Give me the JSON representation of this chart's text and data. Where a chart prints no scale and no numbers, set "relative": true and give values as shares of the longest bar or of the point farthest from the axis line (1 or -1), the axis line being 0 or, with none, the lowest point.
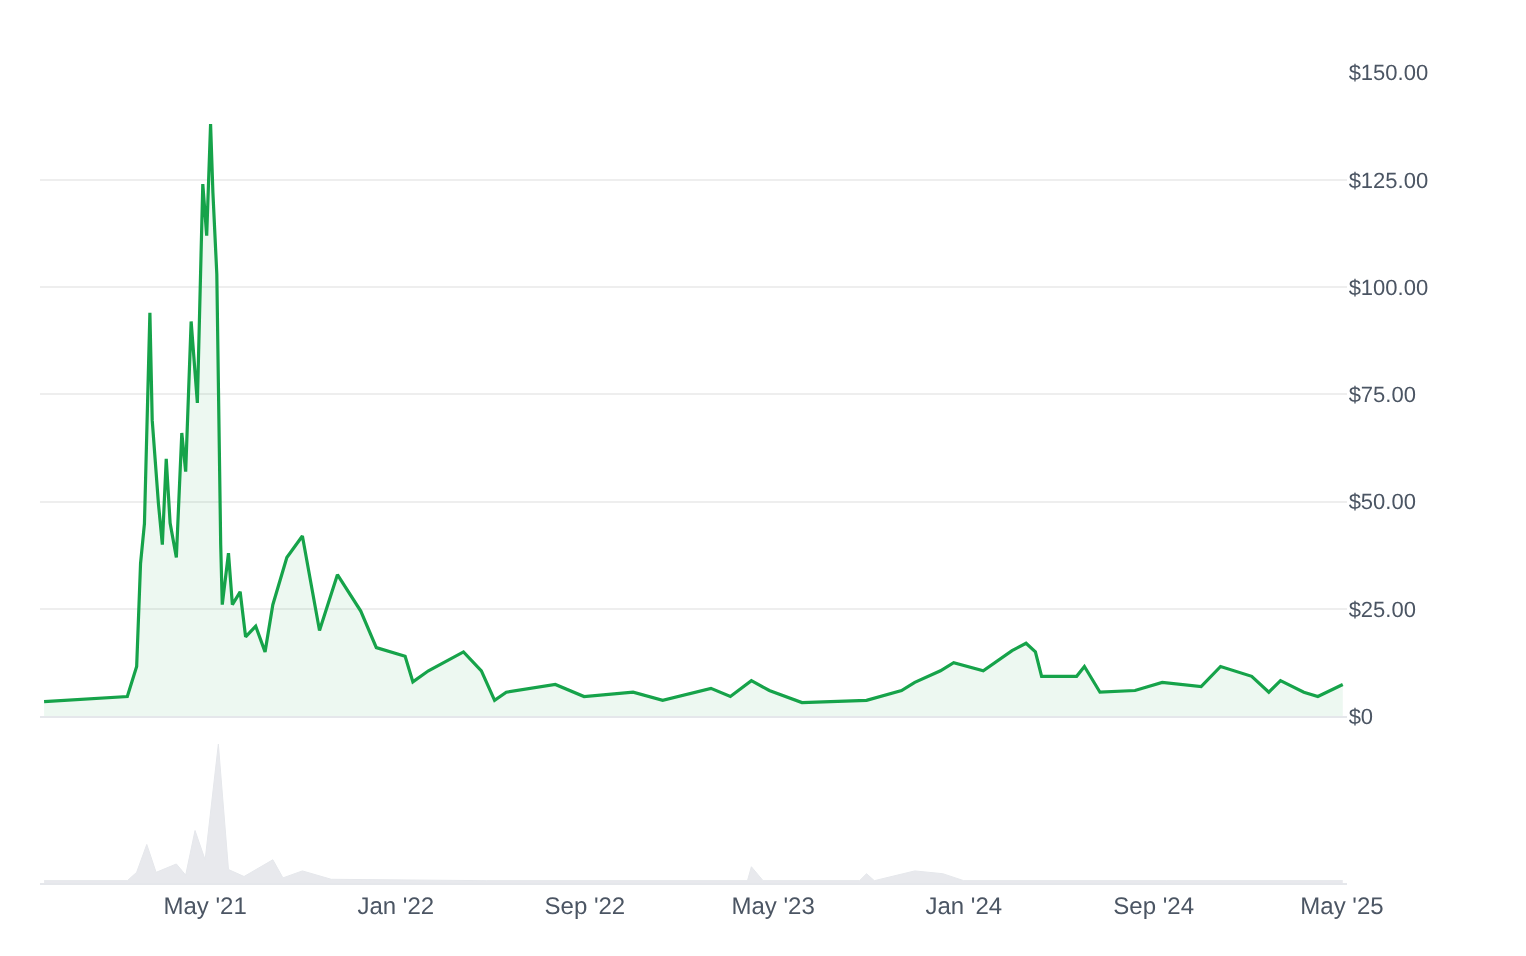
{
  "chart_data": [
    {
      "type": "area",
      "tick_labels": "y",
      "grid": "y",
      "line_style": "solid",
      "xlim": [
        "2020-10-01",
        "2025-05-07"
      ],
      "ylim": [
        0,
        150
      ],
      "yticks": [
        {
          "value": 0,
          "label": "$0"
        },
        {
          "value": 25,
          "label": "$25.00"
        },
        {
          "value": 50,
          "label": "$50.00"
        },
        {
          "value": 75,
          "label": "$75.00"
        },
        {
          "value": 100,
          "label": "$100.00"
        },
        {
          "value": 125,
          "label": "$125.00"
        },
        {
          "value": 150,
          "label": "$150.00"
        }
      ],
      "series": [
        {
          "color": "#16a34a",
          "x": [
            "2020-10-06",
            "2021-01-21",
            "2021-02-02",
            "2021-02-07",
            "2021-02-12",
            "2021-02-19",
            "2021-02-22",
            "2021-03-02",
            "2021-03-07",
            "2021-03-12",
            "2021-03-17",
            "2021-03-25",
            "2021-04-01",
            "2021-04-06",
            "2021-04-13",
            "2021-04-21",
            "2021-04-28",
            "2021-05-03",
            "2021-05-08",
            "2021-05-11",
            "2021-05-16",
            "2021-05-21",
            "2021-05-23",
            "2021-05-31",
            "2021-06-05",
            "2021-06-15",
            "2021-06-22",
            "2021-07-05",
            "2021-07-17",
            "2021-07-27",
            "2021-08-14",
            "2021-09-03",
            "2021-09-13",
            "2021-09-25",
            "2021-10-18",
            "2021-11-17",
            "2021-12-07",
            "2022-01-13",
            "2022-01-23",
            "2022-02-12",
            "2022-03-29",
            "2022-04-21",
            "2022-05-08",
            "2022-05-23",
            "2022-07-25",
            "2022-08-31",
            "2022-11-02",
            "2022-12-10",
            "2023-02-10",
            "2023-03-07",
            "2023-04-03",
            "2023-04-26",
            "2023-06-07",
            "2023-08-29",
            "2023-10-13",
            "2023-10-30",
            "2023-12-02",
            "2023-12-19",
            "2024-01-26",
            "2024-03-03",
            "2024-03-21",
            "2024-04-02",
            "2024-04-10",
            "2024-05-25",
            "2024-06-04",
            "2024-06-24",
            "2024-08-08",
            "2024-09-12",
            "2024-11-01",
            "2024-11-26",
            "2025-01-05",
            "2025-01-27",
            "2025-02-11",
            "2025-03-13",
            "2025-03-31",
            "2025-05-02"
          ],
          "values": [
            3.4,
            4.6,
            11.6,
            35.6,
            44.9,
            94,
            69,
            49.5,
            40,
            60,
            45,
            37,
            66,
            57,
            92,
            73,
            124,
            112,
            138,
            122,
            103,
            40,
            26,
            38,
            26,
            29,
            18.5,
            21,
            15,
            26,
            37,
            42,
            32,
            20,
            33,
            24.5,
            16,
            14,
            8,
            10.6,
            15,
            10.6,
            3.7,
            5.6,
            7.4,
            4.6,
            5.6,
            3.7,
            6.5,
            4.6,
            8.3,
            6,
            3.2,
            3.7,
            6,
            7.9,
            10.6,
            12.5,
            10.6,
            15.3,
            17,
            15,
            9.3,
            9.3,
            11.6,
            5.6,
            6,
            7.9,
            6.9,
            11.6,
            9.3,
            5.6,
            8.3,
            5.6,
            4.6,
            7.4
          ]
        }
      ]
    },
    {
      "type": "area",
      "relative": true,
      "tick_labels": "x",
      "grid": false,
      "xlim": [
        "2020-10-01",
        "2025-05-07"
      ],
      "xticks": [
        {
          "value": "2021-05-01",
          "label": "May '21"
        },
        {
          "value": "2022-01-01",
          "label": "Jan '22"
        },
        {
          "value": "2022-09-01",
          "label": "Sep '22"
        },
        {
          "value": "2023-05-01",
          "label": "May '23"
        },
        {
          "value": "2024-01-01",
          "label": "Jan '24"
        },
        {
          "value": "2024-09-01",
          "label": "Sep '24"
        },
        {
          "value": "2025-05-01",
          "label": "May '25"
        }
      ],
      "series": [
        {
          "color": "#e5e7eb",
          "x": [
            "2020-10-06",
            "2021-01-21",
            "2021-02-02",
            "2021-02-15",
            "2021-02-27",
            "2021-03-25",
            "2021-04-06",
            "2021-04-18",
            "2021-05-01",
            "2021-05-18",
            "2021-05-31",
            "2021-06-20",
            "2021-07-27",
            "2021-08-09",
            "2021-09-03",
            "2021-10-10",
            "2022-04-28",
            "2023-03-29",
            "2023-04-03",
            "2023-04-18",
            "2023-08-20",
            "2023-08-29",
            "2023-09-08",
            "2023-10-30",
            "2023-12-05",
            "2024-01-01",
            "2024-09-17",
            "2025-05-02"
          ],
          "values": [
            0.02,
            0.02,
            0.08,
            0.28,
            0.08,
            0.14,
            0.06,
            0.38,
            0.17,
            1.0,
            0.1,
            0.05,
            0.17,
            0.04,
            0.09,
            0.03,
            0.02,
            0.02,
            0.12,
            0.02,
            0.02,
            0.07,
            0.02,
            0.09,
            0.07,
            0.02,
            0.02,
            0.02
          ]
        }
      ]
    }
  ]
}
